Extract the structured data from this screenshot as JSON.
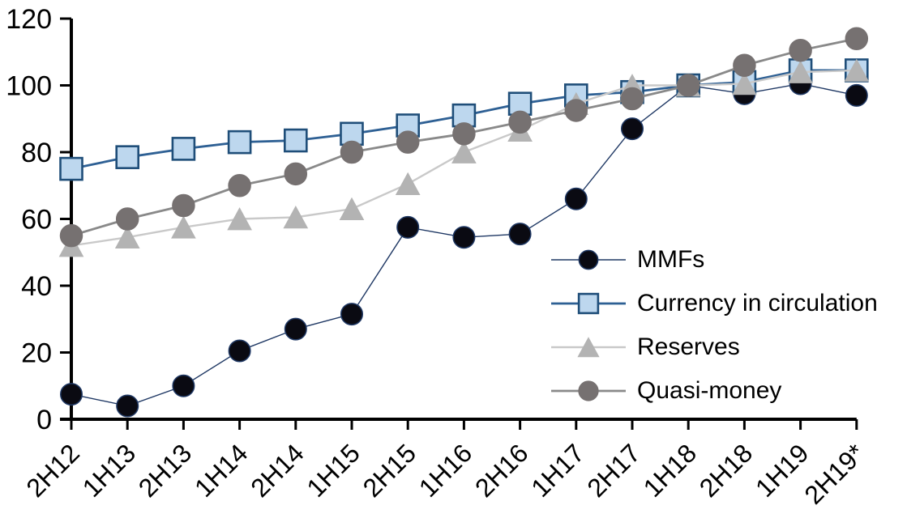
{
  "chart_data": {
    "type": "line",
    "title": "",
    "xlabel": "",
    "ylabel": "",
    "grid": false,
    "axis_color": "#000000",
    "background": "#ffffff",
    "categories": [
      "2H12",
      "1H13",
      "2H13",
      "1H14",
      "2H14",
      "1H15",
      "2H15",
      "1H16",
      "2H16",
      "1H17",
      "2H17",
      "1H18",
      "2H18",
      "1H19",
      "2H19*"
    ],
    "y_axis": {
      "min": 0,
      "max": 120,
      "step": 20,
      "tick_labels": [
        "0",
        "20",
        "40",
        "60",
        "80",
        "100",
        "120"
      ]
    },
    "series": [
      {
        "name": "MMFs",
        "marker": "circle",
        "marker_fill": "#0a0a12",
        "marker_stroke": "#1f3864",
        "line_color": "#1f3864",
        "line_width": 1.4,
        "marker_size": 26.5,
        "values": [
          7.5,
          4,
          10,
          20.5,
          27,
          31.5,
          57.5,
          54.5,
          55.5,
          66,
          87,
          100,
          97.5,
          100.5,
          97
        ]
      },
      {
        "name": "Currency in circulation",
        "marker": "square",
        "marker_fill": "#bdd7ee",
        "marker_stroke": "#1f4e79",
        "line_color": "#2e6094",
        "line_width": 2.8,
        "marker_size": 27,
        "values": [
          75,
          78.5,
          81,
          83,
          83.5,
          85.5,
          88,
          91,
          94.5,
          97,
          98,
          100,
          101,
          104.5,
          104.5
        ]
      },
      {
        "name": "Reserves",
        "marker": "triangle",
        "marker_fill": "#b3b3b3",
        "marker_stroke": "#b3b3b3",
        "line_color": "#c9c9c9",
        "line_width": 2.4,
        "marker_size": 29,
        "values": [
          52,
          54.5,
          57.5,
          60,
          60.5,
          63,
          70.5,
          80,
          86.5,
          94.5,
          100,
          100,
          100.5,
          104,
          104.5
        ]
      },
      {
        "name": "Quasi-money",
        "marker": "circle",
        "marker_fill": "#767171",
        "marker_stroke": "#767171",
        "line_color": "#898989",
        "line_width": 2.8,
        "marker_size": 27,
        "values": [
          55,
          60,
          64,
          70,
          73.5,
          80,
          83,
          85.5,
          89,
          92.5,
          96,
          100,
          106,
          110.5,
          114
        ]
      }
    ],
    "legend": {
      "position": "inside-right",
      "entries": [
        "MMFs",
        "Currency in circulation",
        "Reserves",
        "Quasi-money"
      ]
    }
  }
}
